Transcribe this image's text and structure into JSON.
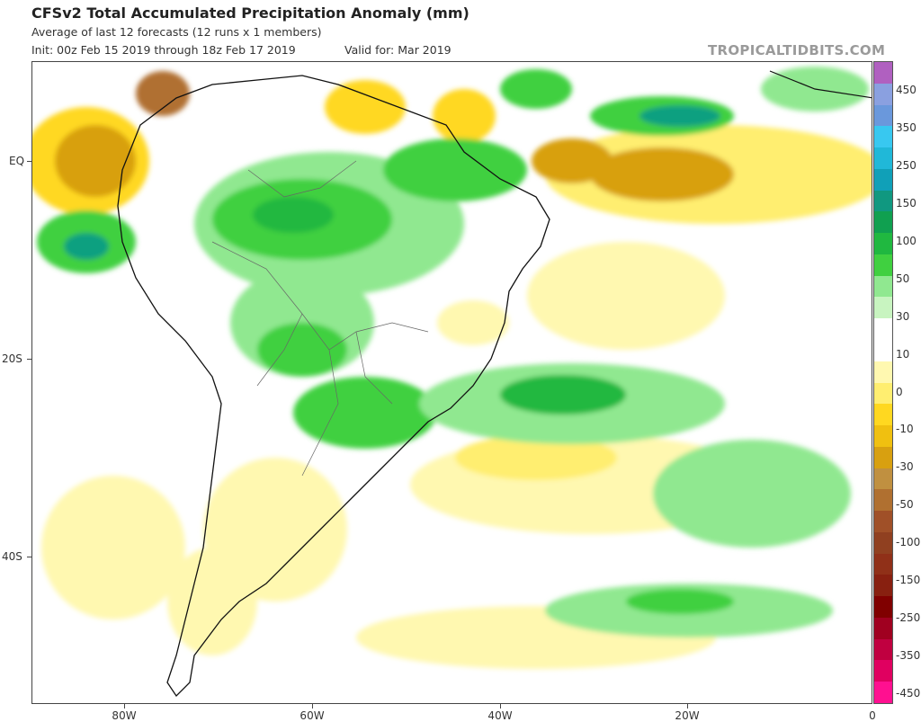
{
  "header": {
    "title": "CFSv2 Total Accumulated Precipitation Anomaly (mm)",
    "subtitle": "Average of last 12 forecasts (12 runs x 1 members)",
    "init": "Init: 00z Feb 15 2019 through 18z Feb 17 2019",
    "valid": "Valid for: Mar 2019",
    "brand": "TROPICALTIDBITS.COM"
  },
  "axes": {
    "lat_labels": [
      "EQ",
      "20S",
      "40S"
    ],
    "lon_labels": [
      "80W",
      "60W",
      "40W",
      "20W",
      "0"
    ]
  },
  "colorbar": {
    "labels": [
      "450",
      "350",
      "250",
      "150",
      "100",
      "50",
      "30",
      "10",
      "0",
      "-10",
      "-30",
      "-50",
      "-100",
      "-150",
      "-250",
      "-350",
      "-450"
    ],
    "colors": [
      "#b060c0",
      "#8aa0e0",
      "#6a98dc",
      "#38c8f0",
      "#20b8d8",
      "#10a0b8",
      "#109880",
      "#10a050",
      "#20b840",
      "#40d040",
      "#90e890",
      "#c8f4c0",
      "#ffffff",
      "#ffffff",
      "#fff8b0",
      "#ffee70",
      "#ffd820",
      "#f0c010",
      "#d8a010",
      "#c09040",
      "#b07030",
      "#a05028",
      "#904020",
      "#903018",
      "#882010",
      "#800000",
      "#a00020",
      "#c00040",
      "#e00060",
      "#ff1090"
    ]
  },
  "map_colors": {
    "land_outline": "#111111",
    "border": "#666666",
    "wet_light": "#c8f4c0",
    "wet": "#90e890",
    "wet_mid": "#40d040",
    "wet_strong": "#20b840",
    "wet_deep": "#10a080",
    "dry_light": "#fff8b0",
    "dry": "#ffee70",
    "dry_mid": "#ffd820",
    "dry_strong": "#d8a010",
    "dry_deep": "#b07030"
  }
}
